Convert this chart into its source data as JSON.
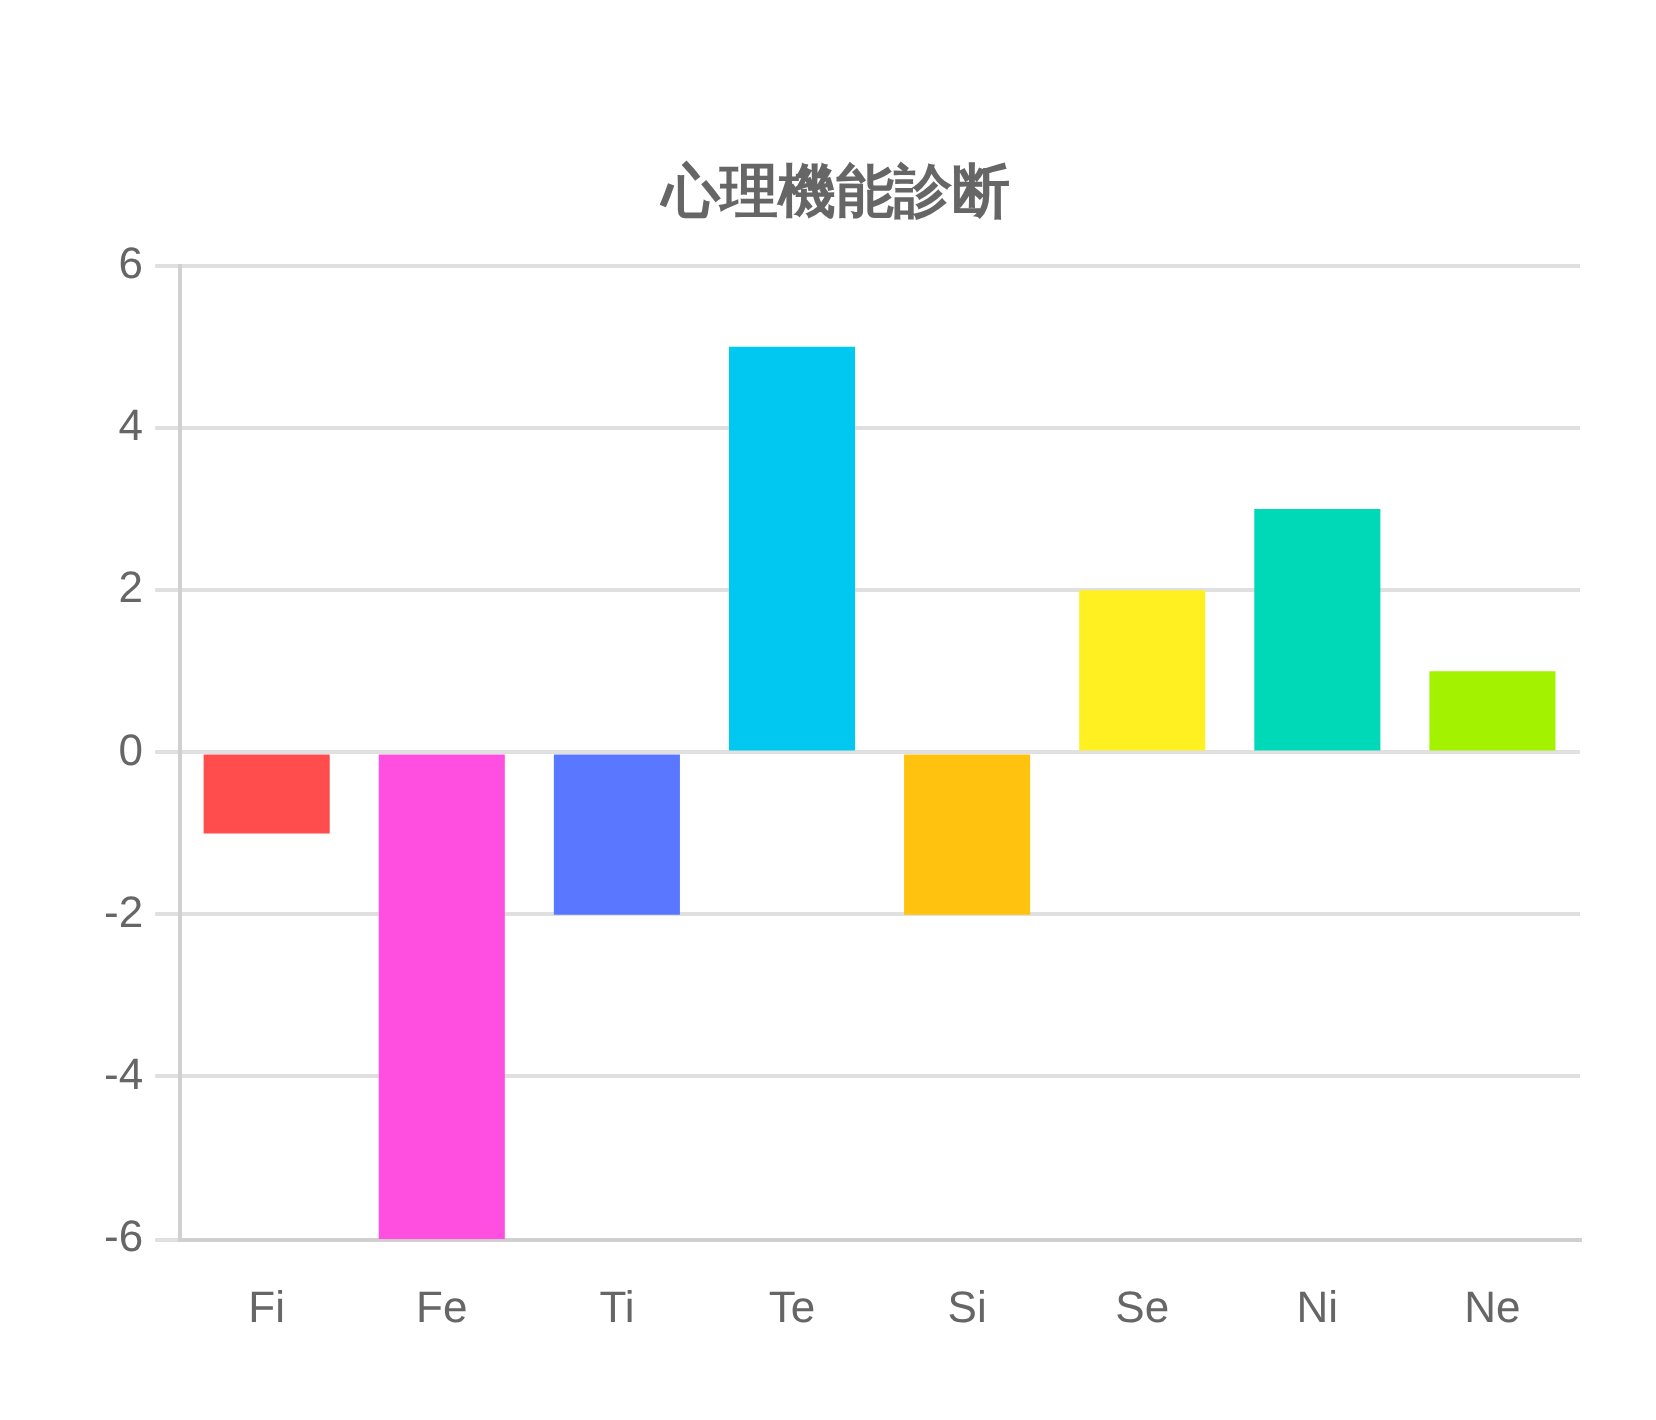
{
  "chart_data": {
    "type": "bar",
    "title": "心理機能診断",
    "categories": [
      "Fi",
      "Fe",
      "Ti",
      "Te",
      "Si",
      "Se",
      "Ni",
      "Ne"
    ],
    "values": [
      -1,
      -6,
      -2,
      5,
      -2,
      2,
      3,
      1
    ],
    "colors": [
      "#ff4d4d",
      "#ff4fe0",
      "#5a77ff",
      "#00c8f0",
      "#ffc20e",
      "#fff022",
      "#00d9b8",
      "#a3f200"
    ],
    "ylim": [
      -6,
      6
    ],
    "yticks": [
      -6,
      -4,
      -2,
      0,
      2,
      4,
      6
    ],
    "grid": "y"
  }
}
